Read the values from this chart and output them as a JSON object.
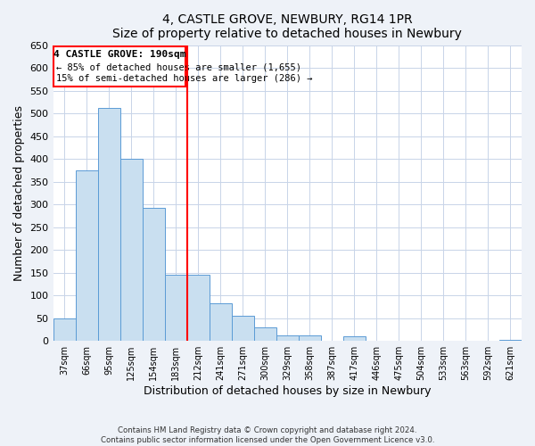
{
  "title": "4, CASTLE GROVE, NEWBURY, RG14 1PR",
  "subtitle": "Size of property relative to detached houses in Newbury",
  "xlabel": "Distribution of detached houses by size in Newbury",
  "ylabel": "Number of detached properties",
  "bar_labels": [
    "37sqm",
    "66sqm",
    "95sqm",
    "125sqm",
    "154sqm",
    "183sqm",
    "212sqm",
    "241sqm",
    "271sqm",
    "300sqm",
    "329sqm",
    "358sqm",
    "387sqm",
    "417sqm",
    "446sqm",
    "475sqm",
    "504sqm",
    "533sqm",
    "563sqm",
    "592sqm",
    "621sqm"
  ],
  "bar_values": [
    50,
    375,
    512,
    400,
    293,
    145,
    145,
    82,
    55,
    30,
    12,
    12,
    0,
    10,
    0,
    0,
    0,
    0,
    0,
    0,
    2
  ],
  "bar_color": "#c9dff0",
  "bar_edge_color": "#5b9bd5",
  "vline_x_index": 5,
  "vline_color": "red",
  "ylim": [
    0,
    650
  ],
  "yticks": [
    0,
    50,
    100,
    150,
    200,
    250,
    300,
    350,
    400,
    450,
    500,
    550,
    600,
    650
  ],
  "annotation_title": "4 CASTLE GROVE: 190sqm",
  "annotation_line1": "← 85% of detached houses are smaller (1,655)",
  "annotation_line2": "15% of semi-detached houses are larger (286) →",
  "footnote1": "Contains HM Land Registry data © Crown copyright and database right 2024.",
  "footnote2": "Contains public sector information licensed under the Open Government Licence v3.0.",
  "bg_color": "#eef2f8",
  "plot_bg_color": "#ffffff"
}
